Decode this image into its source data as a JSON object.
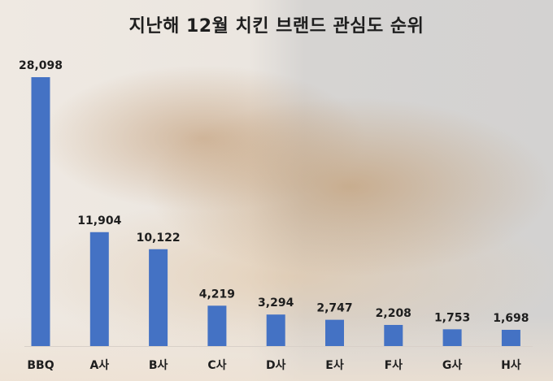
{
  "chart_data": {
    "type": "bar",
    "title": "지난해 12월 치킨 브랜드 관심도 순위",
    "categories": [
      "BBQ",
      "A사",
      "B사",
      "C사",
      "D사",
      "E사",
      "F사",
      "G사",
      "H사"
    ],
    "values": [
      28098,
      11904,
      10122,
      4219,
      3294,
      2747,
      2208,
      1753,
      1698
    ],
    "value_labels": [
      "28,098",
      "11,904",
      "10,122",
      "4,219",
      "3,294",
      "2,747",
      "2,208",
      "1,753",
      "1,698"
    ],
    "xlabel": "",
    "ylabel": "",
    "ylim": [
      0,
      28098
    ],
    "grid": false,
    "bar_color": "#4472c4",
    "background": "faded roast chicken photo"
  }
}
